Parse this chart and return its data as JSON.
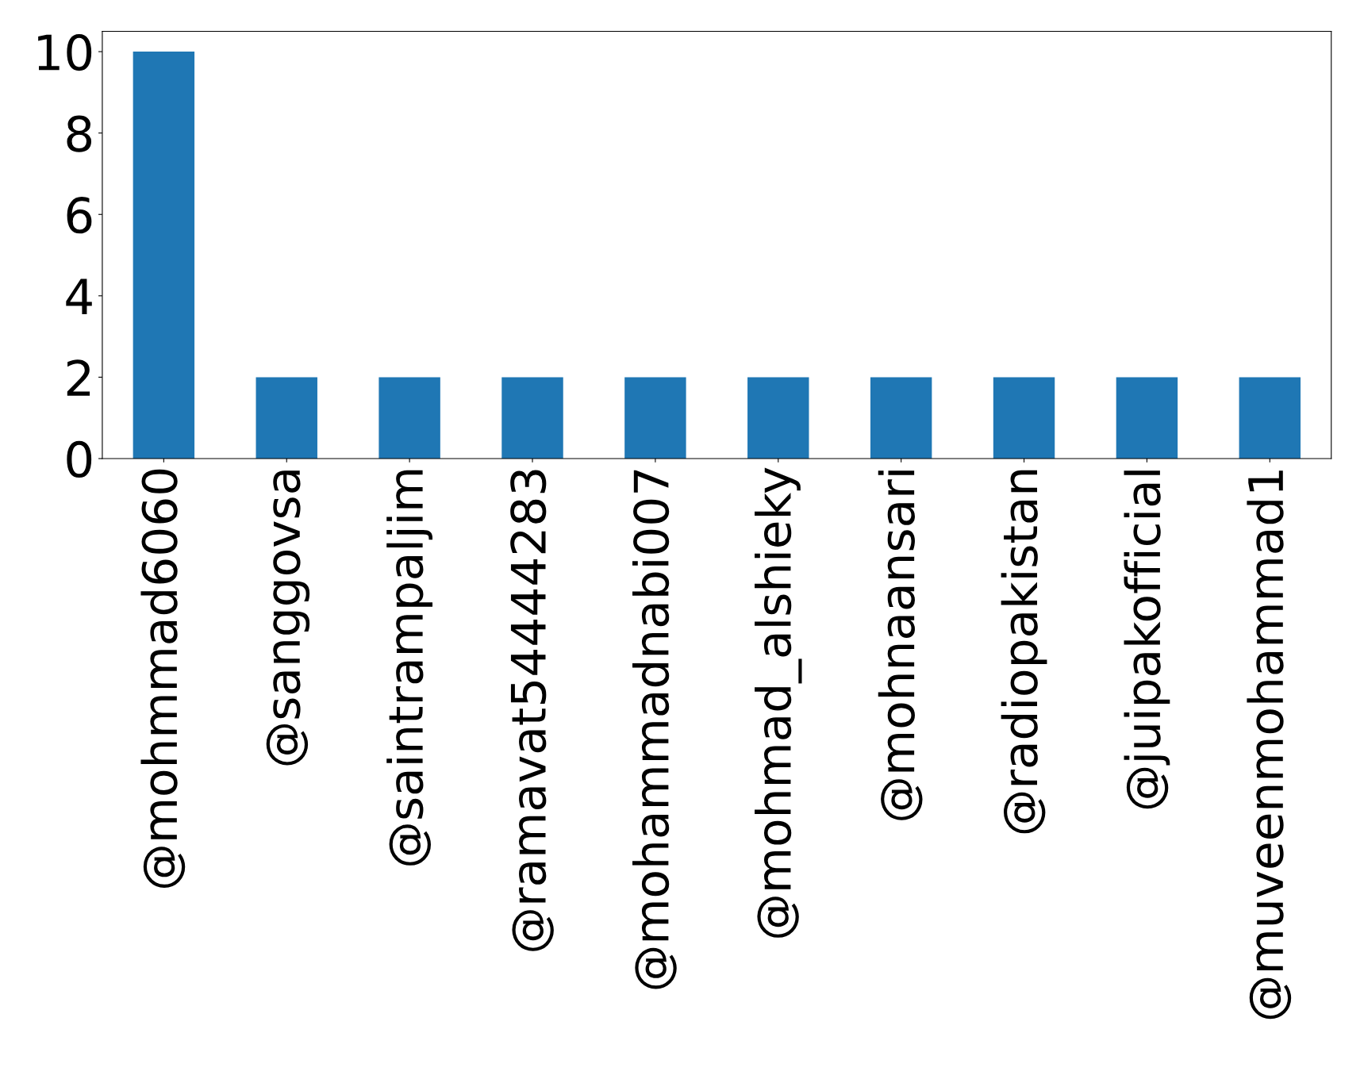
{
  "chart_data": {
    "type": "bar",
    "categories": [
      "@mohmmad6060",
      "@sanggovsa",
      "@saintrampaljim",
      "@ramavat54444283",
      "@mohammadnabi007",
      "@mohmad_alshieky",
      "@mohnaansari",
      "@radiopakistan",
      "@juipakofficial",
      "@muveenmohammad1"
    ],
    "values": [
      10,
      2,
      2,
      2,
      2,
      2,
      2,
      2,
      2,
      2
    ],
    "color": "#1f77b4",
    "ylim": [
      0,
      10.5
    ],
    "yticks": [
      0,
      2,
      4,
      6,
      8,
      10
    ],
    "grid": false
  }
}
